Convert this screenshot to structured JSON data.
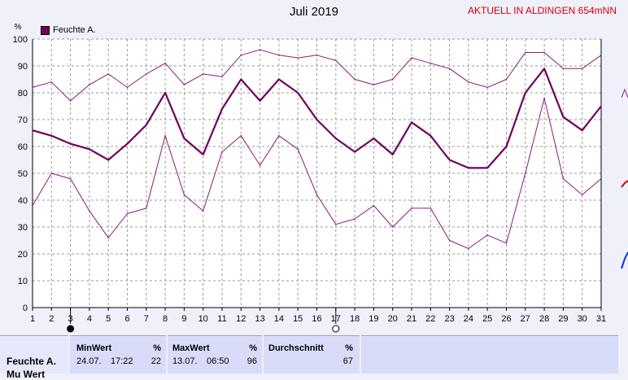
{
  "header": {
    "title": "Juli 2019",
    "station": "AKTUELL IN ALDINGEN 654mNN"
  },
  "chart_data": {
    "type": "line",
    "ylabel": "%",
    "ylim": [
      0,
      100
    ],
    "yticks": [
      0,
      10,
      20,
      30,
      40,
      50,
      60,
      70,
      80,
      90,
      100
    ],
    "x": [
      1,
      2,
      3,
      4,
      5,
      6,
      7,
      8,
      9,
      10,
      11,
      12,
      13,
      14,
      15,
      16,
      17,
      18,
      19,
      20,
      21,
      22,
      23,
      24,
      25,
      26,
      27,
      28,
      29,
      30,
      31
    ],
    "legend": "top-left",
    "grid": true,
    "moon_days": [
      {
        "day": 3,
        "phase": "new"
      },
      {
        "day": 17,
        "phase": "full"
      }
    ],
    "series": [
      {
        "name": "Feuchte A.",
        "role": "avg",
        "color": "#6e0060",
        "values": [
          66,
          64,
          61,
          59,
          55,
          61,
          68,
          80,
          63,
          57,
          74,
          85,
          77,
          85,
          80,
          70,
          63,
          58,
          63,
          57,
          69,
          64,
          55,
          52,
          52,
          60,
          80,
          89,
          71,
          66,
          75
        ]
      },
      {
        "name": "",
        "role": "max",
        "color": "#8a1a7a",
        "values": [
          82,
          84,
          77,
          83,
          87,
          82,
          87,
          91,
          83,
          87,
          86,
          94,
          96,
          94,
          93,
          94,
          92,
          85,
          83,
          85,
          93,
          91,
          89,
          84,
          82,
          85,
          95,
          95,
          89,
          89,
          94
        ]
      },
      {
        "name": "",
        "role": "min",
        "color": "#8a1a7a",
        "values": [
          38,
          50,
          48,
          36,
          26,
          35,
          37,
          64,
          42,
          36,
          58,
          64,
          53,
          64,
          59,
          42,
          31,
          33,
          38,
          30,
          37,
          37,
          25,
          22,
          27,
          24,
          50,
          78,
          48,
          42,
          48
        ]
      }
    ]
  },
  "stats": {
    "label": "Feuchte A.",
    "label2": "Mu Wert",
    "min": {
      "header": "MinWert",
      "unit": "%",
      "date": "24.07.",
      "time": "17:22",
      "value": "22"
    },
    "max": {
      "header": "MaxWert",
      "unit": "%",
      "date": "13.07.",
      "time": "06:50",
      "value": "96"
    },
    "avg": {
      "header": "Durchschnitt",
      "unit": "%",
      "value": "67"
    }
  }
}
